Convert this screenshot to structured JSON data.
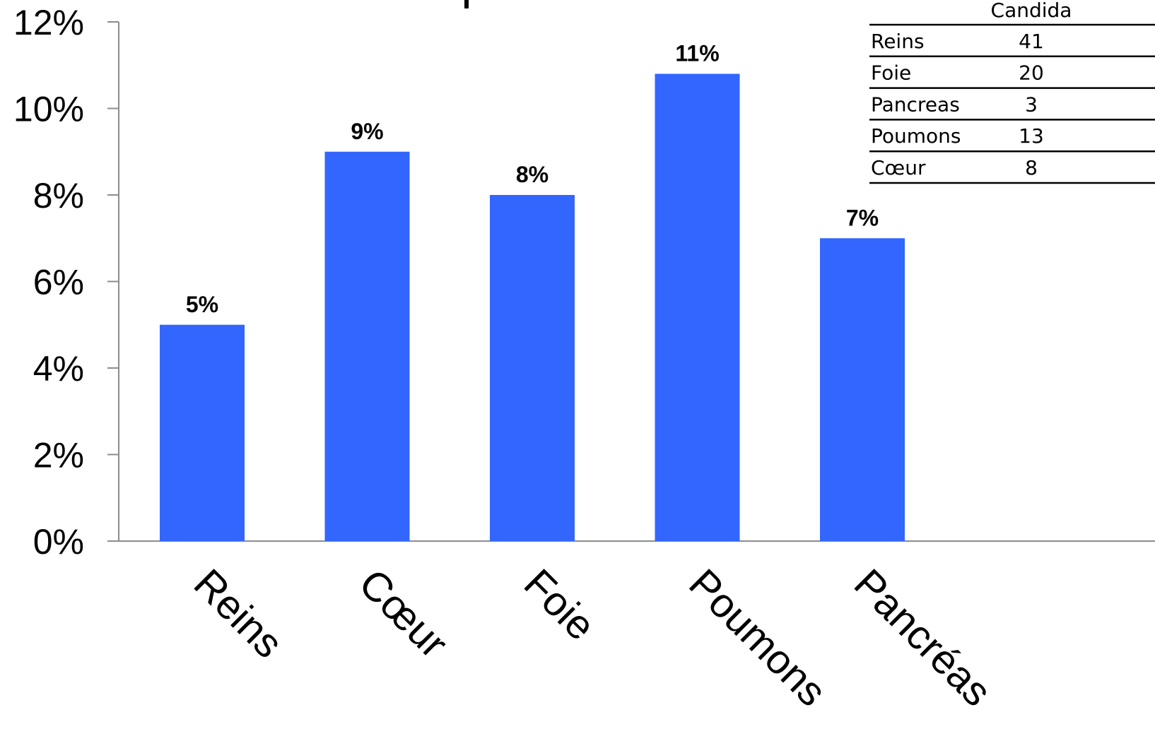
{
  "chart_data": {
    "type": "bar",
    "categories": [
      "Reins",
      "Cœur",
      "Foie",
      "Poumons",
      "Pancréas"
    ],
    "values": [
      5,
      9,
      8,
      10.8,
      7
    ],
    "data_labels": [
      "5%",
      "9%",
      "8%",
      "11%",
      "7%"
    ],
    "ylim": [
      0,
      12
    ],
    "y_ticks": [
      0,
      2,
      4,
      6,
      8,
      10,
      12
    ],
    "y_tick_labels": [
      "0%",
      "2%",
      "4%",
      "6%",
      "8%",
      "10%",
      "12%"
    ],
    "title": "",
    "xlabel": "",
    "ylabel": "",
    "grid": false,
    "bar_color": "#3366ff"
  },
  "inset_table": {
    "header": "Candida",
    "rows": [
      {
        "label": "Reins",
        "value": "41"
      },
      {
        "label": "Foie",
        "value": "20"
      },
      {
        "label": "Pancreas",
        "value": "3"
      },
      {
        "label": "Poumons",
        "value": "13"
      },
      {
        "label": "Cœur",
        "value": "8"
      }
    ]
  }
}
